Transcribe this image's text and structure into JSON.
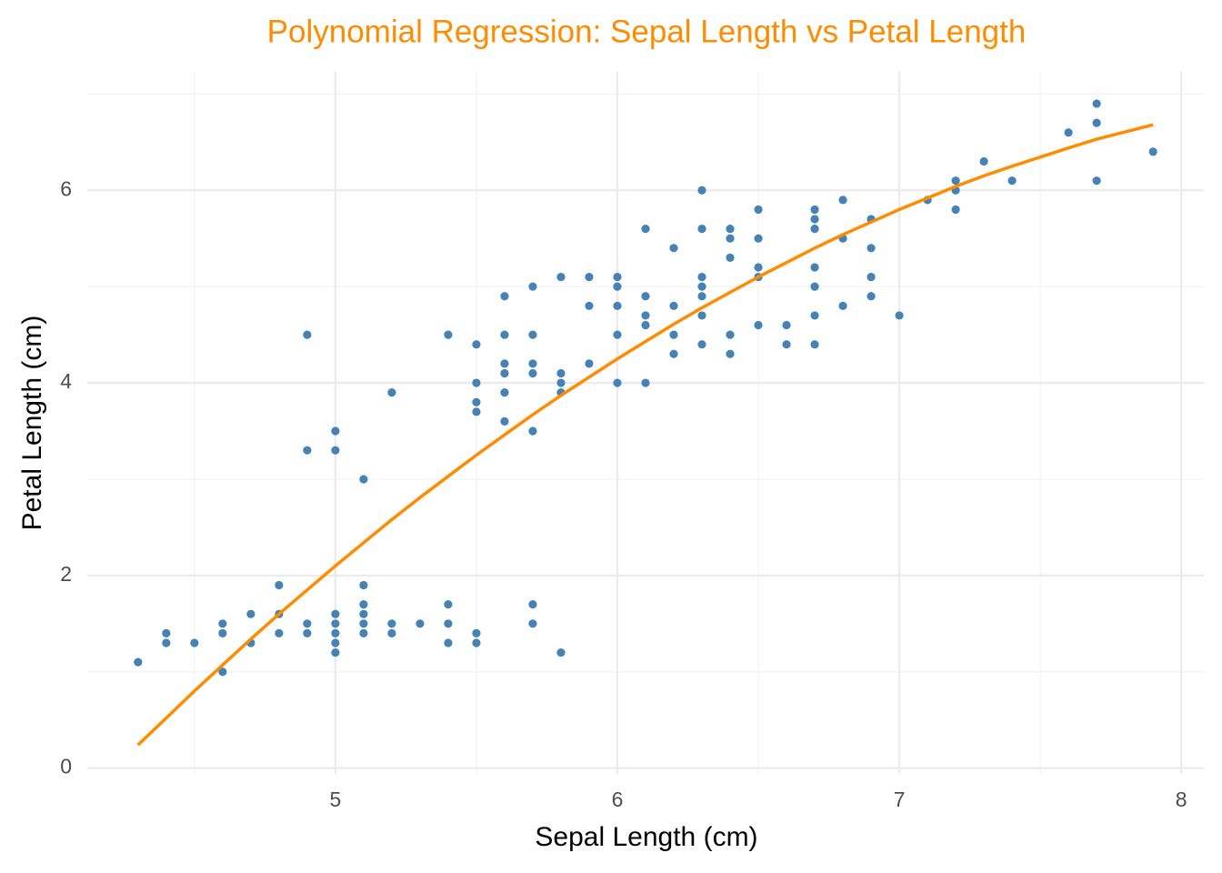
{
  "chart_data": {
    "type": "scatter",
    "title": "Polynomial Regression: Sepal Length vs Petal Length",
    "x_label": "Sepal Length (cm)",
    "y_label": "Petal Length (cm)",
    "xlim": [
      4.12,
      8.08
    ],
    "ylim": [
      -0.06,
      7.23
    ],
    "xticks": [
      5,
      6,
      7,
      8
    ],
    "yticks": [
      0,
      2,
      4,
      6
    ],
    "x_minor_grid": [
      4.5,
      5.5,
      6.5,
      7.5
    ],
    "y_minor_grid": [
      1,
      3,
      5,
      7
    ],
    "grid": true,
    "title_color": "#ff8c00",
    "points": {
      "color": "#4682b4",
      "x": [
        4.3,
        4.4,
        4.4,
        4.5,
        4.6,
        4.6,
        4.6,
        4.7,
        4.7,
        4.8,
        4.8,
        4.8,
        4.9,
        4.9,
        4.9,
        4.9,
        5.0,
        5.0,
        5.0,
        5.0,
        5.0,
        5.0,
        5.0,
        5.1,
        5.1,
        5.1,
        5.1,
        5.1,
        5.1,
        5.2,
        5.2,
        5.2,
        5.3,
        5.4,
        5.4,
        5.4,
        5.4,
        5.5,
        5.5,
        5.5,
        5.5,
        5.5,
        5.5,
        5.6,
        5.6,
        5.6,
        5.6,
        5.6,
        5.6,
        5.7,
        5.7,
        5.7,
        5.7,
        5.7,
        5.7,
        5.7,
        5.8,
        5.8,
        5.8,
        5.8,
        5.8,
        5.9,
        5.9,
        5.9,
        6.0,
        6.0,
        6.0,
        6.0,
        6.0,
        6.1,
        6.1,
        6.1,
        6.1,
        6.1,
        6.2,
        6.2,
        6.2,
        6.2,
        6.3,
        6.3,
        6.3,
        6.3,
        6.3,
        6.3,
        6.3,
        6.4,
        6.4,
        6.4,
        6.4,
        6.4,
        6.5,
        6.5,
        6.5,
        6.5,
        6.5,
        6.6,
        6.6,
        6.7,
        6.7,
        6.7,
        6.7,
        6.7,
        6.7,
        6.7,
        6.8,
        6.8,
        6.8,
        6.9,
        6.9,
        6.9,
        6.9,
        7.0,
        7.1,
        7.2,
        7.2,
        7.2,
        7.3,
        7.4,
        7.6,
        7.7,
        7.7,
        7.7,
        7.9
      ],
      "y": [
        1.1,
        1.3,
        1.4,
        1.3,
        1.0,
        1.4,
        1.5,
        1.3,
        1.6,
        1.4,
        1.6,
        1.9,
        1.4,
        1.5,
        3.3,
        4.5,
        1.2,
        1.3,
        1.4,
        1.5,
        1.6,
        3.3,
        3.5,
        1.4,
        1.5,
        1.6,
        1.7,
        1.9,
        3.0,
        1.4,
        1.5,
        3.9,
        1.5,
        1.3,
        1.5,
        1.7,
        4.5,
        1.3,
        1.4,
        3.7,
        3.8,
        4.0,
        4.4,
        3.6,
        3.9,
        4.1,
        4.2,
        4.5,
        4.9,
        1.5,
        1.7,
        3.5,
        4.1,
        4.2,
        4.5,
        5.0,
        1.2,
        3.9,
        4.0,
        4.1,
        5.1,
        4.2,
        4.8,
        5.1,
        4.0,
        4.5,
        4.8,
        5.0,
        5.1,
        4.0,
        4.6,
        4.7,
        4.9,
        5.6,
        4.3,
        4.5,
        4.8,
        5.4,
        4.4,
        4.7,
        4.9,
        5.0,
        5.1,
        5.6,
        6.0,
        4.3,
        4.5,
        5.3,
        5.5,
        5.6,
        4.6,
        5.1,
        5.2,
        5.5,
        5.8,
        4.4,
        4.6,
        4.4,
        4.7,
        5.0,
        5.2,
        5.6,
        5.7,
        5.8,
        4.8,
        5.5,
        5.9,
        4.9,
        5.1,
        5.4,
        5.7,
        4.7,
        5.9,
        5.8,
        6.0,
        6.1,
        6.3,
        6.1,
        6.6,
        6.1,
        6.7,
        6.9,
        6.4
      ]
    },
    "fit": {
      "color": "#ff8c00",
      "x": [
        4.3,
        4.4,
        4.5,
        4.6,
        4.7,
        4.8,
        4.9,
        5.0,
        5.1,
        5.2,
        5.3,
        5.4,
        5.5,
        5.6,
        5.7,
        5.8,
        5.9,
        6.0,
        6.1,
        6.2,
        6.3,
        6.4,
        6.5,
        6.6,
        6.7,
        6.8,
        6.9,
        7.0,
        7.1,
        7.2,
        7.3,
        7.4,
        7.6,
        7.7,
        7.9
      ],
      "y": [
        0.24,
        0.52,
        0.8,
        1.07,
        1.34,
        1.6,
        1.85,
        2.1,
        2.34,
        2.58,
        2.81,
        3.03,
        3.25,
        3.46,
        3.67,
        3.87,
        4.06,
        4.25,
        4.43,
        4.61,
        4.78,
        4.94,
        5.1,
        5.25,
        5.4,
        5.54,
        5.67,
        5.8,
        5.92,
        6.04,
        6.15,
        6.25,
        6.44,
        6.53,
        6.68
      ]
    }
  }
}
